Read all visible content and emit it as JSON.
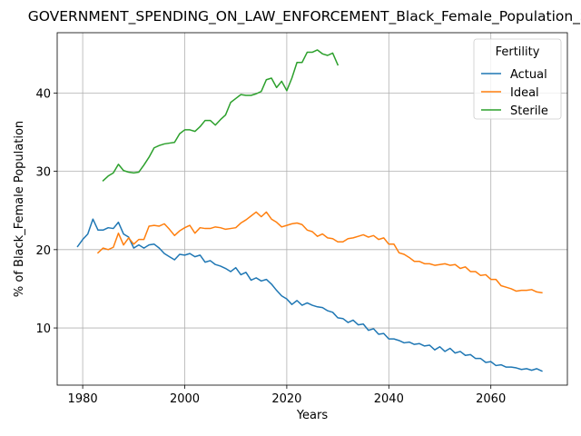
{
  "chart_data": {
    "type": "line",
    "title": "GOVERNMENT_SPENDING_ON_LAW_ENFORCEMENT_Black_Female_Population_Sc",
    "xlabel": "Years",
    "ylabel": "% of Black_Female Population",
    "xlim": [
      1975,
      2075
    ],
    "ylim": [
      2.7,
      47.7
    ],
    "xticks": [
      1980,
      2000,
      2020,
      2040,
      2060
    ],
    "yticks": [
      10,
      20,
      30,
      40
    ],
    "grid": true,
    "legend": {
      "title": "Fertility",
      "placement": "top-right"
    },
    "series": [
      {
        "name": "Actual",
        "color": "#1f77b4",
        "x": [
          1979,
          1980,
          1981,
          1982,
          1983,
          1984,
          1985,
          1986,
          1987,
          1988,
          1989,
          1990,
          1991,
          1992,
          1993,
          1994,
          1995,
          1996,
          1997,
          1998,
          1999,
          2000,
          2001,
          2002,
          2003,
          2004,
          2005,
          2006,
          2007,
          2008,
          2009,
          2010,
          2011,
          2012,
          2013,
          2014,
          2015,
          2016,
          2017,
          2018,
          2019,
          2020,
          2021,
          2022,
          2023,
          2024,
          2025,
          2026,
          2027,
          2028,
          2029,
          2030,
          2031,
          2032,
          2033,
          2034,
          2035,
          2036,
          2037,
          2038,
          2039,
          2040,
          2041,
          2042,
          2043,
          2044,
          2045,
          2046,
          2047,
          2048,
          2049,
          2050,
          2051,
          2052,
          2053,
          2054,
          2055,
          2056,
          2057,
          2058,
          2059,
          2060,
          2061,
          2062,
          2063,
          2064,
          2065,
          2066,
          2067,
          2068,
          2069,
          2070
        ],
        "y": [
          20.4,
          21.3,
          22.0,
          23.9,
          22.5,
          22.5,
          22.8,
          22.7,
          23.5,
          22.0,
          21.6,
          20.2,
          20.6,
          20.2,
          20.6,
          20.7,
          20.2,
          19.5,
          19.1,
          18.7,
          19.4,
          19.3,
          19.5,
          19.1,
          19.3,
          18.4,
          18.6,
          18.1,
          17.9,
          17.6,
          17.2,
          17.7,
          16.8,
          17.1,
          16.1,
          16.4,
          16.0,
          16.2,
          15.6,
          14.8,
          14.1,
          13.7,
          13.0,
          13.5,
          12.9,
          13.2,
          12.9,
          12.7,
          12.6,
          12.2,
          12.0,
          11.3,
          11.2,
          10.7,
          11.0,
          10.4,
          10.5,
          9.7,
          9.9,
          9.2,
          9.3,
          8.6,
          8.6,
          8.4,
          8.1,
          8.2,
          7.9,
          8.0,
          7.7,
          7.8,
          7.2,
          7.6,
          7.0,
          7.4,
          6.8,
          7.0,
          6.5,
          6.6,
          6.1,
          6.1,
          5.6,
          5.7,
          5.2,
          5.3,
          5.0,
          5.0,
          4.9,
          4.7,
          4.8,
          4.6,
          4.8,
          4.5
        ]
      },
      {
        "name": "Ideal",
        "color": "#ff7f0e",
        "x": [
          1983,
          1984,
          1985,
          1986,
          1987,
          1988,
          1989,
          1990,
          1991,
          1992,
          1993,
          1994,
          1995,
          1996,
          1997,
          1998,
          1999,
          2000,
          2001,
          2002,
          2003,
          2004,
          2005,
          2006,
          2007,
          2008,
          2009,
          2010,
          2011,
          2012,
          2013,
          2014,
          2015,
          2016,
          2017,
          2018,
          2019,
          2020,
          2021,
          2022,
          2023,
          2024,
          2025,
          2026,
          2027,
          2028,
          2029,
          2030,
          2031,
          2032,
          2033,
          2034,
          2035,
          2036,
          2037,
          2038,
          2039,
          2040,
          2041,
          2042,
          2043,
          2044,
          2045,
          2046,
          2047,
          2048,
          2049,
          2050,
          2051,
          2052,
          2053,
          2054,
          2055,
          2056,
          2057,
          2058,
          2059,
          2060,
          2061,
          2062,
          2063,
          2064,
          2065,
          2066,
          2067,
          2068,
          2069,
          2070
        ],
        "y": [
          19.6,
          20.2,
          20.0,
          20.3,
          22.1,
          20.6,
          21.5,
          20.7,
          21.3,
          21.3,
          23.0,
          23.1,
          23.0,
          23.3,
          22.6,
          21.8,
          22.4,
          22.8,
          23.1,
          22.1,
          22.8,
          22.7,
          22.7,
          22.9,
          22.8,
          22.6,
          22.7,
          22.8,
          23.4,
          23.8,
          24.3,
          24.8,
          24.2,
          24.8,
          23.9,
          23.5,
          22.9,
          23.1,
          23.3,
          23.4,
          23.2,
          22.5,
          22.3,
          21.7,
          22.0,
          21.5,
          21.4,
          21.0,
          21.0,
          21.4,
          21.5,
          21.7,
          21.9,
          21.6,
          21.8,
          21.3,
          21.5,
          20.7,
          20.7,
          19.6,
          19.4,
          19.0,
          18.5,
          18.5,
          18.2,
          18.2,
          18.0,
          18.1,
          18.2,
          18.0,
          18.1,
          17.6,
          17.8,
          17.2,
          17.2,
          16.7,
          16.8,
          16.2,
          16.2,
          15.4,
          15.2,
          15.0,
          14.7,
          14.8,
          14.8,
          14.9,
          14.6,
          14.5
        ]
      },
      {
        "name": "Sterile",
        "color": "#2ca02c",
        "x": [
          1984,
          1985,
          1986,
          1987,
          1988,
          1989,
          1990,
          1991,
          1992,
          1993,
          1994,
          1995,
          1996,
          1997,
          1998,
          1999,
          2000,
          2001,
          2002,
          2003,
          2004,
          2005,
          2006,
          2007,
          2008,
          2009,
          2010,
          2011,
          2012,
          2013,
          2014,
          2015,
          2016,
          2017,
          2018,
          2019,
          2020,
          2021,
          2022,
          2023,
          2024,
          2025,
          2026,
          2027,
          2028,
          2029,
          2030
        ],
        "y": [
          28.8,
          29.4,
          29.8,
          30.9,
          30.1,
          29.9,
          29.8,
          29.9,
          30.8,
          31.8,
          33.0,
          33.3,
          33.5,
          33.6,
          33.7,
          34.8,
          35.3,
          35.3,
          35.1,
          35.7,
          36.5,
          36.5,
          35.9,
          36.6,
          37.2,
          38.8,
          39.3,
          39.8,
          39.7,
          39.7,
          39.9,
          40.2,
          41.7,
          41.9,
          40.7,
          41.5,
          40.3,
          41.9,
          43.9,
          43.9,
          45.2,
          45.2,
          45.5,
          45.0,
          44.8,
          45.1,
          43.6
        ]
      }
    ]
  }
}
